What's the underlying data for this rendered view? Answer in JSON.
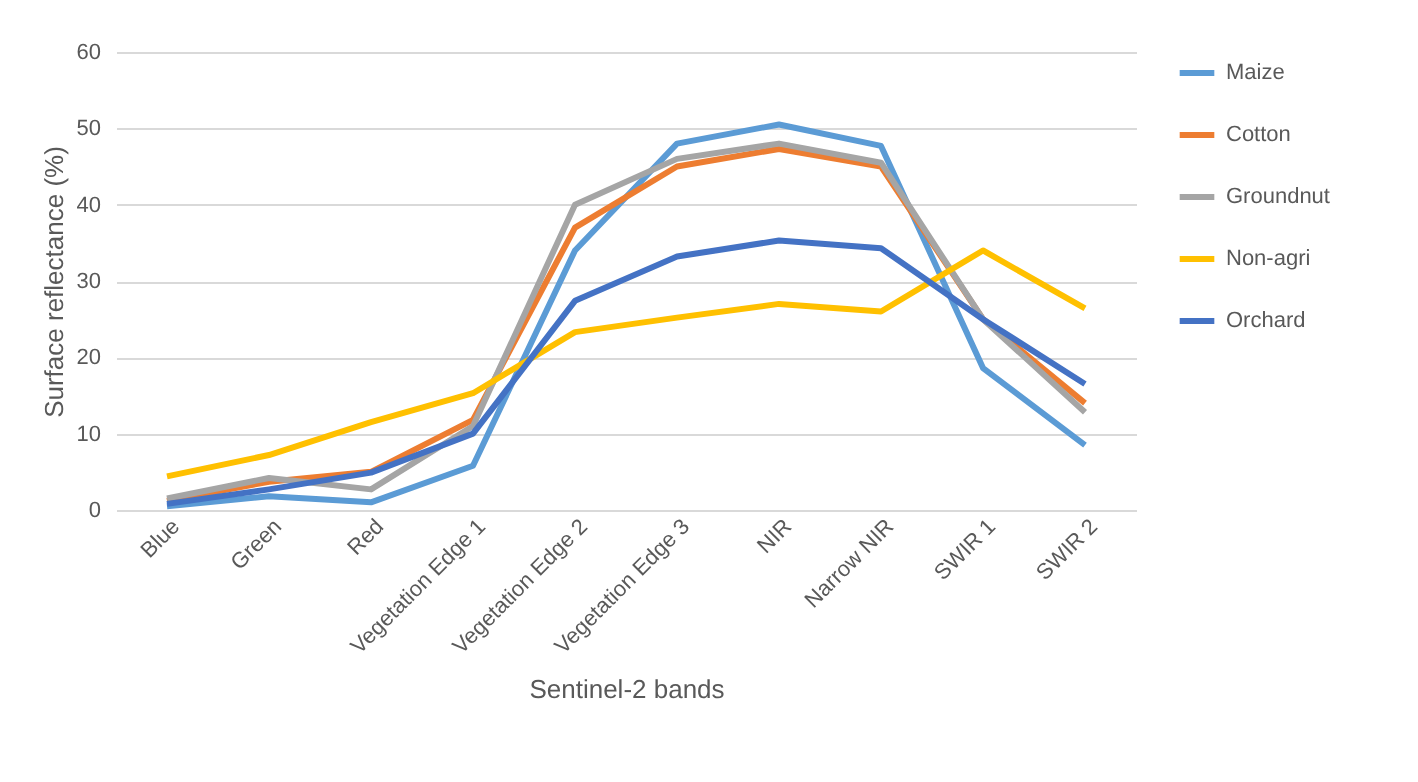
{
  "chart_data": {
    "type": "line",
    "xlabel": "Sentinel-2 bands",
    "ylabel": "Surface reflectance (%)",
    "categories": [
      "Blue",
      "Green",
      "Red",
      "Vegetation Edge 1",
      "Vegetation Edge 2",
      "Vegetation Edge 3",
      "NIR",
      "Narrow NIR",
      "SWIR 1",
      "SWIR 2"
    ],
    "series": [
      {
        "name": "Maize",
        "color": "#5b9bd5",
        "values": [
          0.5,
          1.8,
          1.0,
          5.8,
          34,
          48,
          50.5,
          47.7,
          18.6,
          8.5
        ]
      },
      {
        "name": "Cotton",
        "color": "#ed7d31",
        "values": [
          1.2,
          3.7,
          5.0,
          11.8,
          37,
          45,
          47.3,
          45,
          25,
          14
        ]
      },
      {
        "name": "Groundnut",
        "color": "#a5a5a5",
        "values": [
          1.5,
          4.2,
          2.7,
          11,
          40,
          46,
          48,
          45.5,
          25,
          12.8
        ]
      },
      {
        "name": "Non-agri",
        "color": "#ffc000",
        "values": [
          4.4,
          7.2,
          11.5,
          15.3,
          23.3,
          25.2,
          27,
          26,
          34,
          26.4
        ]
      },
      {
        "name": "Orchard",
        "color": "#4472c4",
        "values": [
          0.8,
          2.7,
          4.9,
          10,
          27.4,
          33.2,
          35.3,
          34.3,
          25,
          16.5
        ]
      }
    ],
    "ylim": [
      0,
      60
    ],
    "yticks": [
      0,
      10,
      20,
      30,
      40,
      50,
      60
    ],
    "grid": "y",
    "legend": "right",
    "marker": "none",
    "line_style": "solid"
  }
}
